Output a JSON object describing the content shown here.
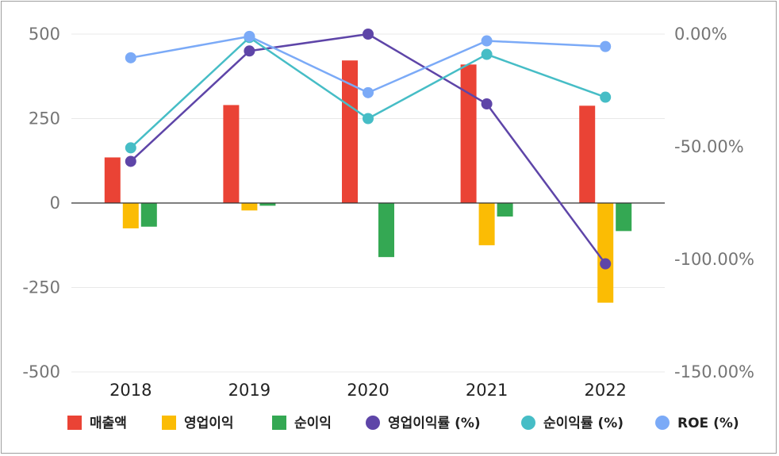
{
  "chart_data": {
    "type": "bar",
    "categories": [
      "2018",
      "2019",
      "2020",
      "2021",
      "2022"
    ],
    "series": [
      {
        "name": "매출액",
        "type": "bar",
        "axis": "left",
        "color": "#ea4335",
        "values": [
          135,
          290,
          422,
          410,
          288
        ]
      },
      {
        "name": "영업이익",
        "type": "bar",
        "axis": "left",
        "color": "#fbbc04",
        "values": [
          -75,
          -22,
          0,
          -125,
          -295
        ]
      },
      {
        "name": "순이익",
        "type": "bar",
        "axis": "left",
        "color": "#34a853",
        "values": [
          -70,
          -8,
          -160,
          -40,
          -83
        ]
      },
      {
        "name": "영업이익률 (%)",
        "type": "line",
        "axis": "right",
        "color": "#5e45a8",
        "values": [
          -56.5,
          -7.5,
          0.0,
          -31.0,
          -102.0
        ]
      },
      {
        "name": "순이익률 (%)",
        "type": "line",
        "axis": "right",
        "color": "#46bdc6",
        "values": [
          -50.5,
          -1.5,
          -37.5,
          -9.0,
          -28.0
        ]
      },
      {
        "name": "ROE (%)",
        "type": "line",
        "axis": "right",
        "color": "#7baaf7",
        "values": [
          -10.5,
          -1.0,
          -26.0,
          -3.0,
          -5.5
        ]
      }
    ],
    "y_left": {
      "range": [
        -500,
        500
      ],
      "ticks": [
        "500",
        "250",
        "0",
        "-250",
        "-500"
      ],
      "tick_values": [
        500,
        250,
        0,
        -250,
        -500
      ]
    },
    "y_right": {
      "range": [
        -150,
        0
      ],
      "ticks": [
        "0.00%",
        "-50.00%",
        "-100.00%",
        "-150.00%"
      ],
      "tick_values": [
        0,
        -50,
        -100,
        -150
      ]
    },
    "grid": true,
    "legend_position": "bottom"
  }
}
